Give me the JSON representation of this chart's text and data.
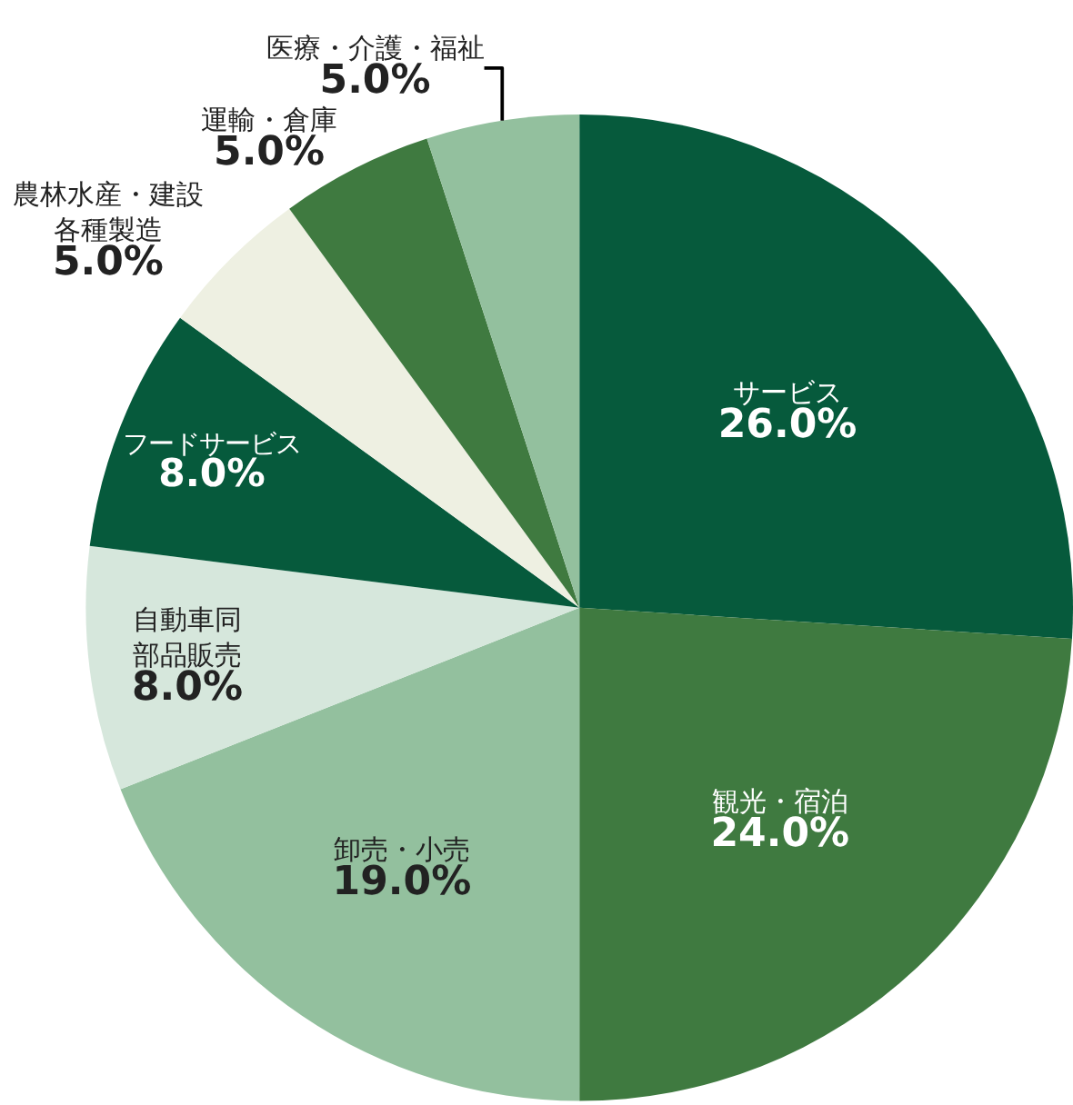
{
  "chart_data": {
    "type": "pie",
    "categories": [
      "サービス",
      "観光・宿泊",
      "卸売・小売",
      "自動車同部品販売",
      "フードサービス",
      "農林水産・建設各種製造",
      "運輸・倉庫",
      "医療・介護・福祉"
    ],
    "values": [
      26,
      24,
      19,
      8,
      8,
      5,
      5,
      5
    ],
    "value_labels": [
      "26.0%",
      "24.0%",
      "19.0%",
      "8.0%",
      "8.0%",
      "5.0%",
      "5.0%",
      "5.0%"
    ],
    "colors": [
      "#065a3c",
      "#3f7a40",
      "#93c09e",
      "#d6e7dc",
      "#065a3c",
      "#eef0e2",
      "#3f7a40",
      "#93c09e"
    ],
    "legend": false
  }
}
